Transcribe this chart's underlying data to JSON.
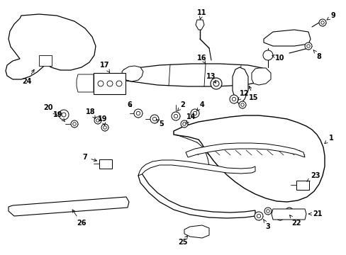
{
  "background_color": "#ffffff",
  "line_color": "#000000",
  "figsize": [
    4.89,
    3.6
  ],
  "dpi": 100,
  "label_fontsize": 7.0
}
